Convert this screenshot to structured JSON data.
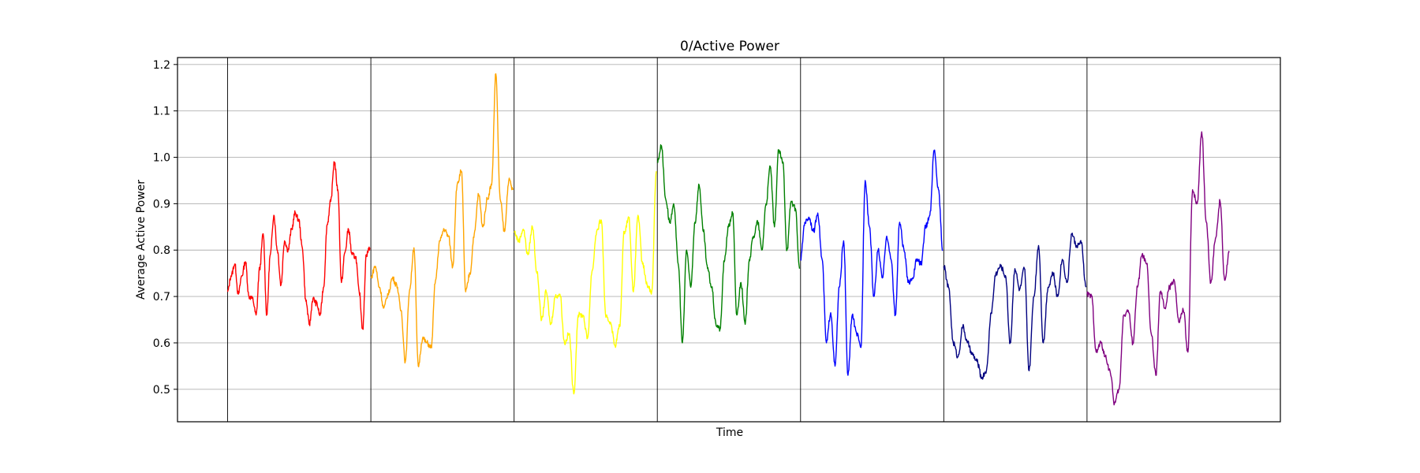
{
  "chart_data": {
    "type": "line",
    "title": "0/Active Power",
    "xlabel": "Time",
    "ylabel": "Average Active Power",
    "ylim": [
      0.43,
      1.215
    ],
    "yticks": [
      0.5,
      0.6,
      0.7,
      0.8,
      0.9,
      1.0,
      1.1,
      1.2
    ],
    "ytick_labels": [
      "0.5",
      "0.6",
      "0.7",
      "0.8",
      "0.9",
      "1.0",
      "1.1",
      "1.2"
    ],
    "xlim": [
      -0.35,
      7.35
    ],
    "grid": "horizontal",
    "legend": "none",
    "segment_dividers": [
      0,
      1,
      2,
      3,
      4,
      5,
      6
    ],
    "series": [
      {
        "color": "#ff0000",
        "x_start": 0,
        "x_end": 0.993,
        "values": [
          0.71,
          0.745,
          0.77,
          0.705,
          0.745,
          0.775,
          0.7,
          0.695,
          0.66,
          0.76,
          0.835,
          0.66,
          0.79,
          0.875,
          0.8,
          0.725,
          0.82,
          0.8,
          0.845,
          0.88,
          0.865,
          0.805,
          0.69,
          0.64,
          0.695,
          0.685,
          0.66,
          0.72,
          0.855,
          0.905,
          0.99,
          0.93,
          0.73,
          0.795,
          0.845,
          0.79,
          0.785,
          0.71,
          0.63,
          0.79,
          0.805
        ]
      },
      {
        "color": "#ffa500",
        "x_start": 1,
        "x_end": 1.993,
        "values": [
          0.74,
          0.765,
          0.72,
          0.675,
          0.705,
          0.74,
          0.725,
          0.67,
          0.56,
          0.715,
          0.805,
          0.55,
          0.61,
          0.6,
          0.59,
          0.735,
          0.82,
          0.845,
          0.83,
          0.765,
          0.94,
          0.97,
          0.71,
          0.75,
          0.835,
          0.92,
          0.85,
          0.91,
          0.94,
          1.18,
          0.91,
          0.84,
          0.95,
          0.93
        ]
      },
      {
        "color": "#ffff00",
        "x_start": 2,
        "x_end": 2.993,
        "values": [
          0.84,
          0.82,
          0.845,
          0.79,
          0.85,
          0.75,
          0.65,
          0.71,
          0.64,
          0.7,
          0.705,
          0.6,
          0.62,
          0.49,
          0.66,
          0.66,
          0.61,
          0.755,
          0.84,
          0.865,
          0.655,
          0.645,
          0.595,
          0.635,
          0.84,
          0.87,
          0.71,
          0.875,
          0.77,
          0.725,
          0.71,
          0.97
        ]
      },
      {
        "color": "#008000",
        "x_start": 3,
        "x_end": 3.993,
        "values": [
          0.99,
          1.025,
          0.91,
          0.86,
          0.895,
          0.77,
          0.6,
          0.8,
          0.72,
          0.86,
          0.94,
          0.84,
          0.76,
          0.72,
          0.64,
          0.63,
          0.775,
          0.85,
          0.88,
          0.66,
          0.73,
          0.64,
          0.78,
          0.83,
          0.86,
          0.8,
          0.9,
          0.98,
          0.85,
          1.015,
          0.99,
          0.8,
          0.905,
          0.89,
          0.76
        ]
      },
      {
        "color": "#0000ff",
        "x_start": 4,
        "x_end": 4.993,
        "values": [
          0.78,
          0.86,
          0.87,
          0.84,
          0.88,
          0.78,
          0.6,
          0.665,
          0.55,
          0.72,
          0.82,
          0.53,
          0.66,
          0.62,
          0.59,
          0.95,
          0.85,
          0.7,
          0.8,
          0.74,
          0.83,
          0.78,
          0.66,
          0.86,
          0.8,
          0.73,
          0.74,
          0.78,
          0.77,
          0.85,
          0.875,
          1.015,
          0.93,
          0.8
        ]
      },
      {
        "color": "#000080",
        "x_start": 5,
        "x_end": 5.993,
        "values": [
          0.765,
          0.72,
          0.6,
          0.57,
          0.635,
          0.6,
          0.575,
          0.56,
          0.525,
          0.54,
          0.665,
          0.75,
          0.765,
          0.745,
          0.6,
          0.76,
          0.715,
          0.76,
          0.54,
          0.7,
          0.81,
          0.6,
          0.72,
          0.75,
          0.7,
          0.78,
          0.73,
          0.835,
          0.81,
          0.815,
          0.72
        ]
      },
      {
        "color": "#800080",
        "x_start": 6,
        "x_end": 6.993,
        "values": [
          0.705,
          0.7,
          0.58,
          0.6,
          0.57,
          0.54,
          0.47,
          0.5,
          0.66,
          0.67,
          0.6,
          0.72,
          0.79,
          0.77,
          0.62,
          0.53,
          0.71,
          0.675,
          0.72,
          0.735,
          0.645,
          0.67,
          0.58,
          0.93,
          0.9,
          1.055,
          0.86,
          0.73,
          0.825,
          0.905,
          0.735,
          0.795
        ]
      }
    ]
  }
}
